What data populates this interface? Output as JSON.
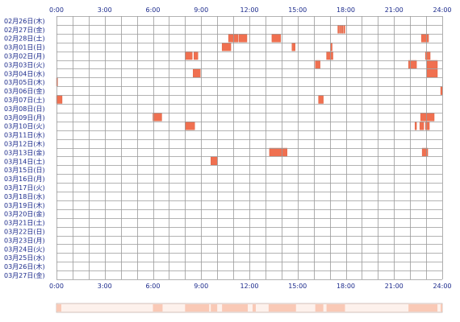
{
  "chart_data": {
    "type": "heatmap",
    "title": "",
    "xlabel": "",
    "ylabel": "",
    "x_range_hours": [
      0,
      24
    ],
    "x_ticks": [
      "0:00",
      "3:00",
      "6:00",
      "9:00",
      "12:00",
      "15:00",
      "18:00",
      "21:00",
      "24:00"
    ],
    "rows": [
      "02月26日(木)",
      "02月27日(金)",
      "02月28日(土)",
      "03月01日(日)",
      "03月02日(月)",
      "03月03日(火)",
      "03月04日(水)",
      "03月05日(木)",
      "03月06日(金)",
      "03月07日(土)",
      "03月08日(日)",
      "03月09日(月)",
      "03月10日(火)",
      "03月11日(水)",
      "03月12日(木)",
      "03月13日(金)",
      "03月14日(土)",
      "03月15日(日)",
      "03月16日(月)",
      "03月17日(火)",
      "03月18日(水)",
      "03月19日(木)",
      "03月20日(金)",
      "03月21日(土)",
      "03月22日(日)",
      "03月23日(月)",
      "03月24日(火)",
      "03月25日(水)",
      "03月26日(木)",
      "03月27日(金)"
    ],
    "events": [
      {
        "row": 1,
        "start": 17.5,
        "end": 17.58
      },
      {
        "row": 1,
        "start": 17.62,
        "end": 17.7
      },
      {
        "row": 1,
        "start": 17.74,
        "end": 17.82
      },
      {
        "row": 1,
        "start": 17.86,
        "end": 17.95
      },
      {
        "row": 2,
        "start": 10.7,
        "end": 11.3
      },
      {
        "row": 2,
        "start": 11.35,
        "end": 11.85
      },
      {
        "row": 2,
        "start": 13.4,
        "end": 13.95
      },
      {
        "row": 2,
        "start": 22.7,
        "end": 23.15
      },
      {
        "row": 3,
        "start": 10.3,
        "end": 10.85
      },
      {
        "row": 3,
        "start": 14.65,
        "end": 14.85
      },
      {
        "row": 3,
        "start": 17.05,
        "end": 17.15
      },
      {
        "row": 4,
        "start": 8.0,
        "end": 8.45
      },
      {
        "row": 4,
        "start": 8.55,
        "end": 8.8
      },
      {
        "row": 4,
        "start": 16.8,
        "end": 17.2
      },
      {
        "row": 4,
        "start": 22.95,
        "end": 23.25
      },
      {
        "row": 5,
        "start": 16.1,
        "end": 16.4
      },
      {
        "row": 5,
        "start": 21.9,
        "end": 22.4
      },
      {
        "row": 5,
        "start": 23.05,
        "end": 23.7
      },
      {
        "row": 6,
        "start": 8.5,
        "end": 8.95
      },
      {
        "row": 6,
        "start": 23.05,
        "end": 23.7
      },
      {
        "row": 7,
        "start": 0.0,
        "end": 0.07
      },
      {
        "row": 8,
        "start": 23.9,
        "end": 24.0
      },
      {
        "row": 9,
        "start": 0.0,
        "end": 0.35
      },
      {
        "row": 9,
        "start": 16.3,
        "end": 16.6
      },
      {
        "row": 11,
        "start": 6.0,
        "end": 6.55
      },
      {
        "row": 11,
        "start": 22.65,
        "end": 23.5
      },
      {
        "row": 12,
        "start": 8.0,
        "end": 8.6
      },
      {
        "row": 12,
        "start": 22.3,
        "end": 22.4
      },
      {
        "row": 12,
        "start": 22.6,
        "end": 22.85
      },
      {
        "row": 12,
        "start": 22.95,
        "end": 23.2
      },
      {
        "row": 15,
        "start": 13.25,
        "end": 14.35
      },
      {
        "row": 15,
        "start": 22.75,
        "end": 23.1
      },
      {
        "row": 16,
        "start": 9.6,
        "end": 10.0
      }
    ],
    "summary_strip_spans": [
      [
        0.0,
        0.3
      ],
      [
        6.0,
        6.6
      ],
      [
        8.0,
        9.5
      ],
      [
        9.6,
        10.0
      ],
      [
        10.3,
        11.9
      ],
      [
        12.2,
        12.4
      ],
      [
        13.2,
        14.9
      ],
      [
        16.1,
        16.6
      ],
      [
        16.8,
        17.95
      ],
      [
        21.9,
        23.7
      ],
      [
        23.9,
        24.0
      ]
    ],
    "colors": {
      "event": "#f07050",
      "event_border": "#d85a3a",
      "grid": "#9a9a9a",
      "axis_text": "#1b2a8c",
      "label_text": "#1b2a8c",
      "strip_bg": "#fdf1ec",
      "strip_fill": "#f9c9b6",
      "strip_border": "#c8b4ac"
    }
  }
}
